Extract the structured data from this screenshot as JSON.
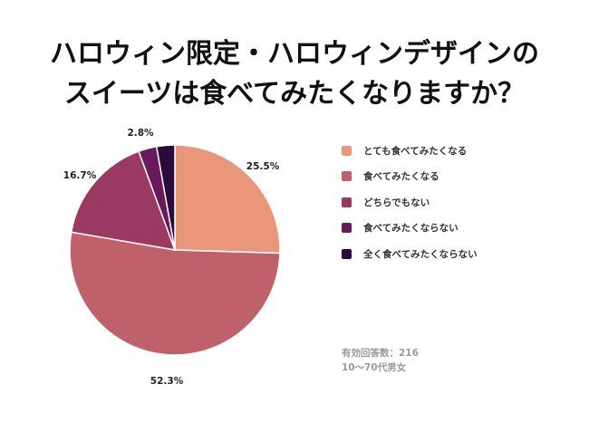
{
  "title_lines": [
    "ハロウィン限定・ハロウィンデザインの",
    "スイーツは食べてみたくなりますか？"
  ],
  "chart_data": {
    "type": "pie",
    "categories": [
      "とても食べてみたくなる",
      "食べてみたくなる",
      "どちらでもない",
      "食べてみたくならない",
      "全く食べてみたくならない"
    ],
    "values": [
      25.5,
      52.3,
      16.7,
      2.8,
      2.8
    ],
    "data_labels": [
      "25.5%",
      "52.3%",
      "16.7%",
      "2.8%",
      ""
    ],
    "colors": [
      "#e9967a",
      "#c0606a",
      "#9a3a63",
      "#6a1a5a",
      "#2b0a3d"
    ],
    "legend_position": "right"
  },
  "notes": {
    "respondents": "有効回答数：216",
    "demographic": "10〜70代男女"
  }
}
